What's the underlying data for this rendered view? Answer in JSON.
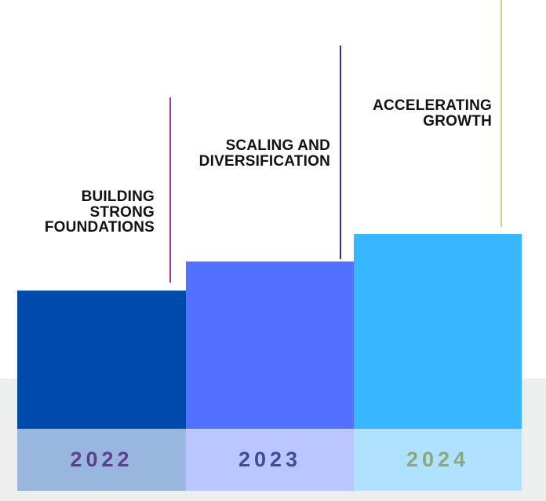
{
  "chart_data": {
    "type": "bar",
    "categories": [
      "2022",
      "2023",
      "2024"
    ],
    "values": [
      255,
      292,
      327
    ],
    "value_note": "no numeric axis shown; values are relative bar heights in px read from the image",
    "series_colors": [
      "#004aad",
      "#5271ff",
      "#38b6ff"
    ],
    "annotations": [
      "BUILDING STRONG FOUNDATIONS",
      "SCALING AND DIVERSIFICATION",
      "ACCELERATING GROWTH"
    ],
    "title": "",
    "xlabel": "",
    "ylabel": "",
    "legend": "none",
    "grid": "off"
  },
  "bars": [
    {
      "year": "2022",
      "label_lines": [
        "BUILDING",
        "STRONG",
        "FOUNDATIONS"
      ],
      "bar_color": "#004aad",
      "year_color": "#5e3f8e",
      "line_color": "#a63a95"
    },
    {
      "year": "2023",
      "label_lines": [
        "SCALING AND",
        "DIVERSIFICATION"
      ],
      "bar_color": "#5271ff",
      "year_color": "#3c4e9a",
      "line_color": "#3d2f8f"
    },
    {
      "year": "2024",
      "label_lines": [
        "ACCELERATING",
        "GROWTH"
      ],
      "bar_color": "#38b6ff",
      "year_color": "#8ea778",
      "line_color": "#d9cb8e"
    }
  ],
  "colors": {
    "background": "#ffffff",
    "band": "#edeeee",
    "strip_overlay": "rgba(255,255,255,0.6)",
    "text": "#111111"
  }
}
